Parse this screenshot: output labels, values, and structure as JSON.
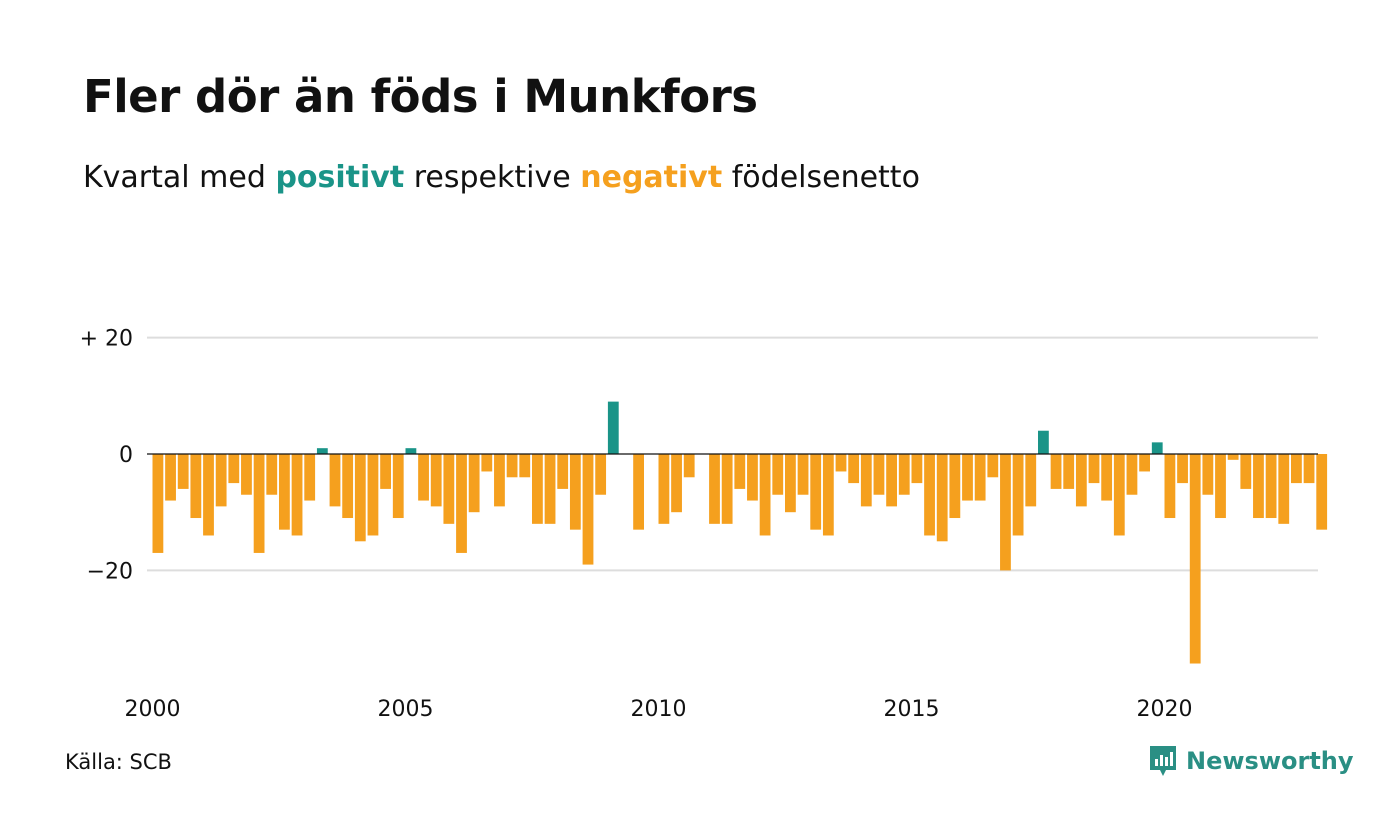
{
  "title": "Fler dör än föds i Munkfors",
  "subtitle": {
    "prefix": "Kvartal med",
    "positive_word": "positivt",
    "middle": "respektive",
    "negative_word": "negativt",
    "suffix": "födelsenetto"
  },
  "source": "Källa: SCB",
  "brand": "Newsworthy",
  "colors": {
    "positive": "#1a9488",
    "negative": "#f5a01e",
    "brand": "#2a8f84",
    "grid": "#dddddd"
  },
  "chart_data": {
    "type": "bar",
    "title": "Fler dör än föds i Munkfors",
    "subtitle": "Kvartal med positivt respektive negativt födelsenetto",
    "xlabel": "",
    "ylabel": "",
    "x_start": 2000,
    "x_ticks": [
      2000,
      2005,
      2010,
      2015,
      2020
    ],
    "y_ticks": [
      20,
      0,
      -20
    ],
    "y_tick_labels": [
      "+ 20",
      "0",
      "−20"
    ],
    "ylim": [
      -40,
      20
    ],
    "grid": true,
    "values": [
      -17,
      -8,
      -6,
      -11,
      -14,
      -9,
      -5,
      -7,
      -17,
      -7,
      -13,
      -14,
      -8,
      1,
      -9,
      -11,
      -15,
      -14,
      -6,
      -11,
      1,
      -8,
      -9,
      -12,
      -17,
      -10,
      -3,
      -9,
      -4,
      -4,
      -12,
      -12,
      -6,
      -13,
      -19,
      -7,
      9,
      0,
      -13,
      0,
      -12,
      -10,
      -4,
      0,
      -12,
      -12,
      -6,
      -8,
      -14,
      -7,
      -10,
      -7,
      -13,
      -14,
      -3,
      -5,
      -9,
      -7,
      -9,
      -7,
      -5,
      -14,
      -15,
      -11,
      -8,
      -8,
      -4,
      -20,
      -14,
      -9,
      4,
      -6,
      -6,
      -9,
      -5,
      -8,
      -14,
      -7,
      -3,
      2,
      -11,
      -5,
      -36,
      -7,
      -11,
      -1,
      -6,
      -11,
      -11,
      -12,
      -5,
      -5,
      -13
    ]
  }
}
